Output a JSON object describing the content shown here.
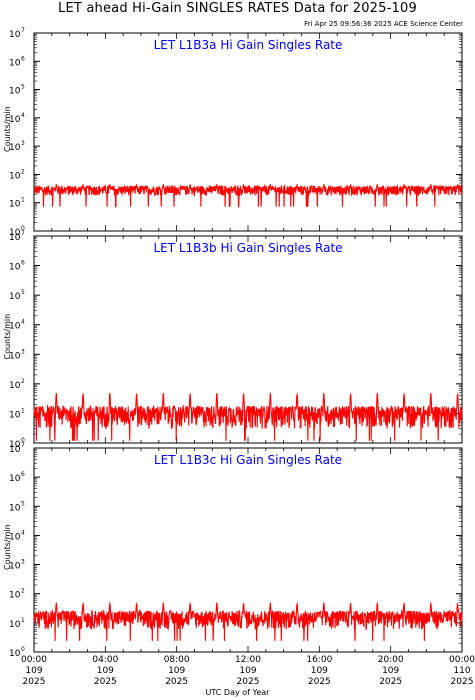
{
  "title": "LET ahead Hi-Gain SINGLES RATES Data for 2025-109",
  "timestamp": "Fri Apr 25 09:56:36 2025 ACE Science Center",
  "xlabel": "UTC Day of Year",
  "ylabel": "Counts/min",
  "colors": {
    "trace": "#ff0000",
    "label": "#0000ff",
    "axis": "#000000"
  },
  "x_ticks": [
    {
      "time": "00:00",
      "day": "109",
      "year": "2025"
    },
    {
      "time": "04:00",
      "day": "109",
      "year": "2025"
    },
    {
      "time": "08:00",
      "day": "109",
      "year": "2025"
    },
    {
      "time": "12:00",
      "day": "109",
      "year": "2025"
    },
    {
      "time": "16:00",
      "day": "109",
      "year": "2025"
    },
    {
      "time": "20:00",
      "day": "109",
      "year": "2025"
    },
    {
      "time": "00:00",
      "day": "110",
      "year": "2025"
    }
  ],
  "chart_data": [
    {
      "type": "line",
      "title": "LET L1B3a Hi Gain Singles Rate",
      "ylabel": "Counts/min",
      "yscale": "log",
      "ylim": [
        1,
        10000000
      ],
      "xlim_hours": [
        0,
        24
      ],
      "xlabel": "UTC Day of Year",
      "series": [
        {
          "baseline": 28,
          "spike_peak": 45,
          "spike_period_hours": 1.5,
          "noise_low": 18,
          "noise_high": 40
        }
      ]
    },
    {
      "type": "line",
      "title": "LET L1B3b Hi Gain Singles Rate",
      "ylabel": "Counts/min",
      "yscale": "log",
      "ylim": [
        1,
        10000000
      ],
      "xlim_hours": [
        0,
        24
      ],
      "xlabel": "UTC Day of Year",
      "series": [
        {
          "baseline": 8,
          "spike_peak": 50,
          "spike_period_hours": 1.5,
          "noise_low": 3,
          "noise_high": 18
        }
      ]
    },
    {
      "type": "line",
      "title": "LET L1B3c Hi Gain Singles Rate",
      "ylabel": "Counts/min",
      "yscale": "log",
      "ylim": [
        1,
        10000000
      ],
      "xlim_hours": [
        0,
        24
      ],
      "xlabel": "UTC Day of Year",
      "series": [
        {
          "baseline": 15,
          "spike_peak": 50,
          "spike_period_hours": 1.5,
          "noise_low": 6,
          "noise_high": 26
        }
      ]
    }
  ]
}
